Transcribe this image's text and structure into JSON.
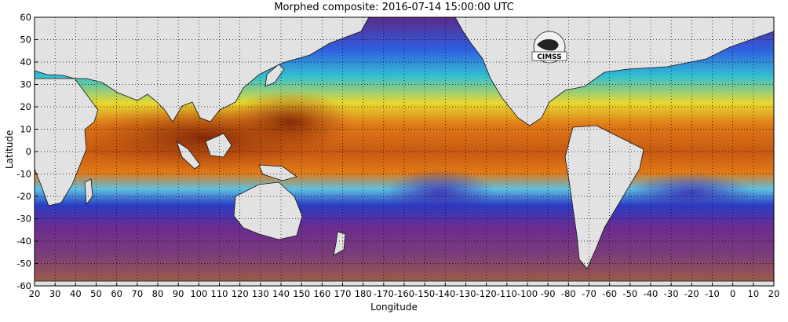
{
  "title": "Morphed composite: 2016-07-14 15:00:00 UTC",
  "xlabel": "Longitude",
  "ylabel": "Latitude",
  "x_ticks": [
    "20",
    "30",
    "40",
    "50",
    "60",
    "70",
    "80",
    "90",
    "100",
    "110",
    "120",
    "130",
    "140",
    "150",
    "160",
    "170",
    "180",
    "-170",
    "-160",
    "-150",
    "-140",
    "-130",
    "-120",
    "-110",
    "-100",
    "-90",
    "-80",
    "-70",
    "-60",
    "-50",
    "-40",
    "-30",
    "-20",
    "-10",
    "0",
    "10",
    "20"
  ],
  "y_ticks": [
    "60",
    "50",
    "40",
    "30",
    "20",
    "10",
    "0",
    "-10",
    "-20",
    "-30",
    "-40",
    "-50",
    "-60"
  ],
  "logo": {
    "text": "CIMSS"
  },
  "colors": {
    "land": "#e2e2e2",
    "dry": "#6e2e8c",
    "moist": "#d86a14",
    "very_moist": "#8a2a0a",
    "mid": "#3aa0ff",
    "low": "#2a3cc4"
  }
}
